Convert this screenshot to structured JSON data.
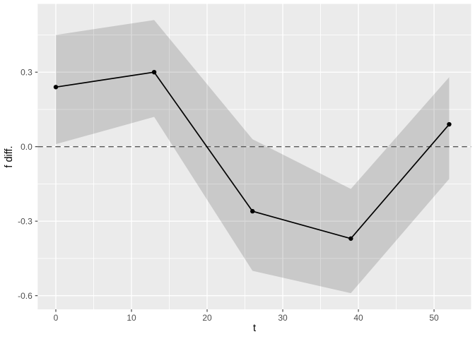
{
  "figure": {
    "background": "#ffffff",
    "panel_background": "#ebebeb",
    "grid_color": "#ffffff",
    "ribbon_fill": "#000000",
    "ribbon_alpha": 0.14,
    "line_color": "#000000",
    "point_color": "#000000",
    "dashed_line_color": "#595959",
    "tick_mark_color": "#333333",
    "tick_label_color": "#4d4d4d",
    "axis_title_color": "#000000"
  },
  "chart_data": {
    "type": "line",
    "title": "",
    "xlabel": "t",
    "ylabel": "f diff.",
    "x": [
      0,
      13,
      26,
      39,
      52
    ],
    "y": [
      0.24,
      0.3,
      -0.26,
      -0.37,
      0.09
    ],
    "series": [
      {
        "name": "f diff.",
        "x": [
          0,
          13,
          26,
          39,
          52
        ],
        "values": [
          0.24,
          0.3,
          -0.26,
          -0.37,
          0.09
        ]
      }
    ],
    "ribbon": {
      "upper": [
        0.45,
        0.51,
        0.03,
        -0.17,
        0.28
      ],
      "lower": [
        0.01,
        0.12,
        -0.5,
        -0.59,
        -0.13
      ]
    },
    "hline": {
      "y": 0.0,
      "style": "dashed"
    },
    "x_ticks": [
      0,
      10,
      20,
      30,
      40,
      50
    ],
    "x_tick_labels": [
      "0",
      "10",
      "20",
      "30",
      "40",
      "50"
    ],
    "x_minor_ticks": [
      5,
      15,
      25,
      35,
      45
    ],
    "y_ticks": [
      0.3,
      0.0,
      -0.3,
      -0.6
    ],
    "y_tick_labels": [
      "0.3",
      "0.0",
      "-0.3",
      "-0.6"
    ],
    "y_minor_ticks": [
      0.45,
      0.15,
      -0.15,
      -0.45
    ],
    "xlim": [
      -2.4,
      54.9
    ],
    "ylim": [
      -0.655,
      0.575
    ],
    "grid": true,
    "legend": "none",
    "points_shown": true
  }
}
